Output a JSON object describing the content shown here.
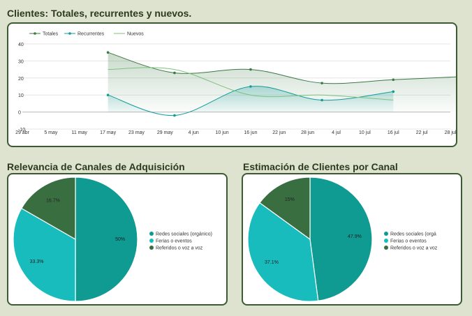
{
  "colors": {
    "background": "#dde3cf",
    "card_border": "#3d5a33",
    "totales": "#3b7a45",
    "recurrentes": "#139c9a",
    "nuevos": "#7cc27f",
    "pie_redes": "#0f9a92",
    "pie_ferias": "#19bcbc",
    "pie_referidos": "#396f40"
  },
  "sections": {
    "line_title": "Clientes: Totales, recurrentes y nuevos.",
    "pie1_title": "Relevancia de Canales de Adquisición",
    "pie2_title": "Estimación de Clientes por Canal"
  },
  "chart_data": [
    {
      "type": "line",
      "title": "Clientes: Totales, recurrentes y nuevos.",
      "x_ticks": [
        "29 abr",
        "5 may",
        "11 may",
        "17 may",
        "23 may",
        "29 may",
        "4 jun",
        "10 jun",
        "16 jun",
        "22 jun",
        "28 jun",
        "4 jul",
        "10 jul",
        "16 jul",
        "22 jul",
        "28 jul"
      ],
      "ylim": [
        -10,
        40
      ],
      "y_ticks": [
        40,
        30,
        20,
        10,
        0,
        -10
      ],
      "grid": true,
      "legend": "top-left",
      "series": [
        {
          "name": "Totales",
          "color_key": "totales",
          "marker": true,
          "area": true,
          "points": [
            [
              "2024-05-17",
              35
            ],
            [
              "2024-05-31",
              23
            ],
            [
              "2024-06-16",
              25
            ],
            [
              "2024-07-01",
              17
            ],
            [
              "2024-07-16",
              19
            ],
            [
              "2024-08-01",
              21
            ]
          ]
        },
        {
          "name": "Recurrentes",
          "color_key": "recurrentes",
          "marker": true,
          "area": true,
          "points": [
            [
              "2024-05-17",
              10
            ],
            [
              "2024-05-31",
              -2
            ],
            [
              "2024-06-16",
              15
            ],
            [
              "2024-07-01",
              7
            ],
            [
              "2024-07-16",
              12
            ]
          ]
        },
        {
          "name": "Nuevos",
          "color_key": "nuevos",
          "marker": false,
          "area": false,
          "points": [
            [
              "2024-05-17",
              25
            ],
            [
              "2024-05-31",
              25
            ],
            [
              "2024-06-16",
              10
            ],
            [
              "2024-07-01",
              10
            ],
            [
              "2024-07-16",
              7
            ]
          ]
        }
      ]
    },
    {
      "type": "pie",
      "title": "Relevancia de Canales de Adquisición",
      "legend": "right",
      "slices": [
        {
          "label": "Redes sociales (orgánico)",
          "value": 50,
          "display": "50%",
          "color_key": "pie_redes"
        },
        {
          "label": "Ferias o eventos",
          "value": 33.3,
          "display": "33.3%",
          "color_key": "pie_ferias"
        },
        {
          "label": "Referidos o voz a voz",
          "value": 16.7,
          "display": "16.7%",
          "color_key": "pie_referidos"
        }
      ]
    },
    {
      "type": "pie",
      "title": "Estimación de Clientes por Canal",
      "legend": "right",
      "slices": [
        {
          "label": "Redes sociales (orgá",
          "value": 47.9,
          "display": "47.9%",
          "color_key": "pie_redes"
        },
        {
          "label": "Ferias o eventos",
          "value": 37.1,
          "display": "37.1%",
          "color_key": "pie_ferias"
        },
        {
          "label": "Referidos o voz a voz",
          "value": 15,
          "display": "15%",
          "color_key": "pie_referidos"
        }
      ]
    }
  ]
}
